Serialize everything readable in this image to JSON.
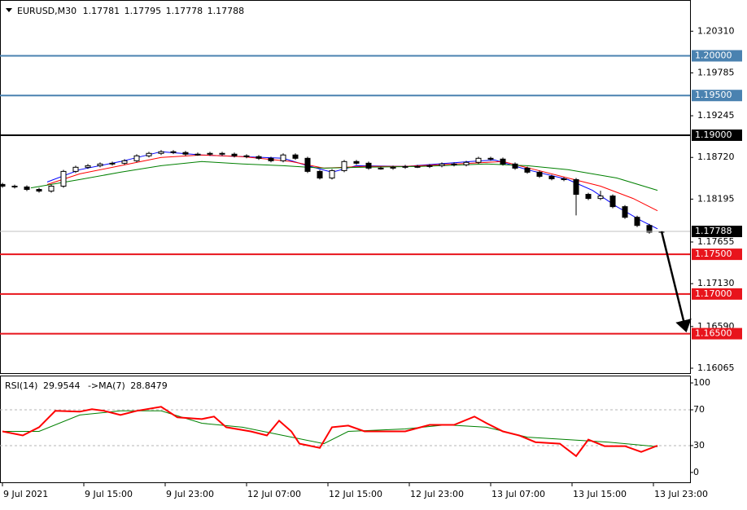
{
  "chart_data": [
    {
      "type": "candlestick",
      "symbol": "EURUSD,M30",
      "quote": [
        1.17781,
        1.17795,
        1.17778,
        1.17788
      ],
      "x": [
        0,
        3,
        6,
        9,
        12,
        15,
        18,
        21,
        24,
        27,
        30,
        33,
        36,
        39,
        42,
        45,
        48,
        51,
        54,
        57,
        60,
        63,
        66,
        69,
        72,
        75,
        78,
        81,
        84,
        87,
        90,
        93,
        96,
        99,
        102,
        105,
        108,
        111,
        114,
        117,
        120,
        123,
        126,
        129,
        132,
        135,
        138,
        141,
        144,
        147,
        150,
        153,
        156,
        159,
        162
      ],
      "open": [
        1.1838,
        1.18358,
        1.18348,
        1.18317,
        1.18296,
        1.18358,
        1.18544,
        1.18596,
        1.18616,
        1.18637,
        1.18647,
        1.18678,
        1.1874,
        1.18771,
        1.18792,
        1.18782,
        1.18761,
        1.18761,
        1.18771,
        1.18761,
        1.1874,
        1.1873,
        1.18709,
        1.18678,
        1.18751,
        1.18709,
        1.18544,
        1.18461,
        1.18554,
        1.18668,
        1.18647,
        1.18585,
        1.18585,
        1.18596,
        1.18606,
        1.18606,
        1.18616,
        1.18637,
        1.18627,
        1.18658,
        1.18709,
        1.18699,
        1.18637,
        1.18585,
        1.18534,
        1.18482,
        1.18451,
        1.18441,
        1.18255,
        1.18203,
        1.18234,
        1.181,
        1.17966,
        1.17863,
        1.17779
      ],
      "high": [
        1.184,
        1.18378,
        1.18368,
        1.18337,
        1.18378,
        1.18564,
        1.18616,
        1.18636,
        1.18657,
        1.18667,
        1.18698,
        1.1876,
        1.18791,
        1.18812,
        1.18812,
        1.18802,
        1.18781,
        1.18791,
        1.18791,
        1.18781,
        1.1876,
        1.1875,
        1.18729,
        1.18771,
        1.18771,
        1.18729,
        1.18564,
        1.18574,
        1.18688,
        1.18688,
        1.18667,
        1.18605,
        1.18616,
        1.18626,
        1.18626,
        1.18636,
        1.18657,
        1.18657,
        1.18678,
        1.18729,
        1.18729,
        1.18719,
        1.18657,
        1.18605,
        1.18554,
        1.18502,
        1.18471,
        1.18461,
        1.18275,
        1.183,
        1.18254,
        1.1812,
        1.17986,
        1.17883,
        1.17795
      ],
      "low": [
        1.18338,
        1.18328,
        1.18297,
        1.18276,
        1.18276,
        1.18338,
        1.18524,
        1.18576,
        1.18596,
        1.18617,
        1.18627,
        1.18658,
        1.1872,
        1.18751,
        1.18762,
        1.18741,
        1.18741,
        1.18741,
        1.18741,
        1.1872,
        1.1871,
        1.18689,
        1.18658,
        1.18658,
        1.18689,
        1.18524,
        1.18441,
        1.18441,
        1.18534,
        1.18627,
        1.18565,
        1.18565,
        1.18565,
        1.18576,
        1.18586,
        1.18586,
        1.18596,
        1.18607,
        1.18607,
        1.18638,
        1.18679,
        1.18617,
        1.18565,
        1.18514,
        1.18462,
        1.18431,
        1.18421,
        1.1799,
        1.18183,
        1.18183,
        1.1808,
        1.17946,
        1.17843,
        1.17759,
        1.17759
      ],
      "close": [
        1.18358,
        1.18348,
        1.18317,
        1.18296,
        1.18358,
        1.18544,
        1.18596,
        1.18616,
        1.18637,
        1.18647,
        1.18678,
        1.1874,
        1.18771,
        1.18792,
        1.18782,
        1.18761,
        1.18761,
        1.18771,
        1.18761,
        1.1874,
        1.1873,
        1.18709,
        1.18678,
        1.18751,
        1.18709,
        1.18544,
        1.18461,
        1.18554,
        1.18668,
        1.18647,
        1.18585,
        1.18585,
        1.18596,
        1.18606,
        1.18606,
        1.18616,
        1.18637,
        1.18627,
        1.18658,
        1.18709,
        1.18699,
        1.18637,
        1.18585,
        1.18534,
        1.18482,
        1.18451,
        1.18441,
        1.18255,
        1.18203,
        1.18234,
        1.181,
        1.17966,
        1.17863,
        1.17779,
        1.17788
      ],
      "lines": [
        {
          "color": "#0000ff",
          "x": [
            11,
            19,
            29,
            39,
            49,
            59,
            69,
            75,
            81,
            87,
            99,
            115,
            121,
            129,
            139,
            145,
            151,
            157,
            161
          ],
          "values": [
            1.1841,
            1.18565,
            1.18668,
            1.18792,
            1.18751,
            1.1873,
            1.18709,
            1.18616,
            1.18534,
            1.18616,
            1.18606,
            1.18668,
            1.18688,
            1.18565,
            1.18441,
            1.18306,
            1.181,
            1.17924,
            1.17821
          ]
        },
        {
          "color": "#ff0000",
          "x": [
            11,
            19,
            29,
            39,
            49,
            59,
            71,
            79,
            89,
            99,
            115,
            123,
            131,
            139,
            147,
            155,
            161
          ],
          "values": [
            1.18379,
            1.18513,
            1.18616,
            1.1872,
            1.18751,
            1.1873,
            1.18668,
            1.18585,
            1.18606,
            1.18606,
            1.18647,
            1.18668,
            1.18565,
            1.18461,
            1.18358,
            1.18203,
            1.18048
          ]
        },
        {
          "color": "#008000",
          "x": [
            7,
            19,
            29,
            39,
            49,
            59,
            69,
            79,
            89,
            103,
            119,
            129,
            139,
            151,
            161
          ],
          "values": [
            1.18337,
            1.18441,
            1.18534,
            1.18616,
            1.18668,
            1.18637,
            1.18616,
            1.18585,
            1.18596,
            1.18606,
            1.18637,
            1.18616,
            1.18565,
            1.18461,
            1.18306
          ]
        }
      ],
      "levels": [
        {
          "value": 1.2,
          "label": "1.20000",
          "color": "#4a82b0"
        },
        {
          "value": 1.195,
          "label": "1.19500",
          "color": "#4a82b0"
        },
        {
          "value": 1.19,
          "label": "1.19000",
          "color": "#000000"
        },
        {
          "value": 1.175,
          "label": "1.17500",
          "color": "#e8141c"
        },
        {
          "value": 1.17,
          "label": "1.17000",
          "color": "#e8141c"
        },
        {
          "value": 1.165,
          "label": "1.16500",
          "color": "#e8141c"
        }
      ],
      "current_price": 1.17788,
      "arrow": {
        "x": [
          162,
          168
        ],
        "y": [
          1.17788,
          1.165
        ]
      },
      "xlim": [
        -0.6,
        169
      ],
      "ylim": [
        1.16003,
        1.20703
      ],
      "yticks": [
        {
          "value": 1.2031,
          "label": "1.20310"
        },
        {
          "value": 1.19785,
          "label": "1.19785"
        },
        {
          "value": 1.19245,
          "label": "1.19245"
        },
        {
          "value": 1.1872,
          "label": "1.18720"
        },
        {
          "value": 1.18195,
          "label": "1.18195"
        },
        {
          "value": 1.17655,
          "label": "1.17655"
        },
        {
          "value": 1.1713,
          "label": "1.17130"
        },
        {
          "value": 1.1659,
          "label": "1.16590"
        },
        {
          "value": 1.16065,
          "label": "1.16065"
        }
      ]
    },
    {
      "type": "line",
      "title": "RSI(14)",
      "value": 29.9544,
      "ma_title": "->MA(7)",
      "ma_value": 28.8479,
      "series": [
        {
          "color": "#ff0000",
          "x": [
            0,
            5,
            9,
            13,
            19,
            22,
            25,
            29,
            33,
            39,
            43,
            49,
            52,
            55,
            61,
            65,
            68,
            71,
            73,
            78,
            81,
            85,
            89,
            99,
            105,
            111,
            116,
            119,
            123,
            127,
            131,
            137,
            141,
            144,
            148,
            153,
            157,
            161
          ],
          "values": [
            45.9,
            41.3,
            50.5,
            68.8,
            67.9,
            70.6,
            68.8,
            64.2,
            68.8,
            73.4,
            61.5,
            59.6,
            62.4,
            50.5,
            45.9,
            41.3,
            57.8,
            45.9,
            32.1,
            27.5,
            50.5,
            52.3,
            45.9,
            45.9,
            53.2,
            53.2,
            62.4,
            55.0,
            45.9,
            41.3,
            33.9,
            32.1,
            18.3,
            36.7,
            29.4,
            29.4,
            22.9,
            29.9544
          ]
        },
        {
          "color": "#008000",
          "x": [
            0,
            9,
            19,
            29,
            39,
            49,
            59,
            69,
            79,
            85,
            99,
            109,
            119,
            129,
            139,
            149,
            161
          ],
          "values": [
            45.9,
            45.9,
            64.2,
            68.8,
            68.8,
            55.0,
            50.5,
            41.3,
            32.1,
            45.9,
            48.6,
            53.2,
            50.5,
            39.4,
            36.7,
            33.9,
            28.8479
          ]
        }
      ],
      "levels": [
        70,
        30
      ],
      "xlim": [
        -0.6,
        169
      ],
      "ylim": [
        -11,
        107.3
      ],
      "yticks": [
        0,
        30,
        70,
        100
      ],
      "xticks": [
        {
          "value": 0,
          "label": "9 Jul 2021"
        },
        {
          "value": 20,
          "label": "9 Jul 15:00"
        },
        {
          "value": 40,
          "label": "9 Jul 23:00"
        },
        {
          "value": 60,
          "label": "12 Jul 07:00"
        },
        {
          "value": 80,
          "label": "12 Jul 15:00"
        },
        {
          "value": 100,
          "label": "12 Jul 23:00"
        },
        {
          "value": 120,
          "label": "13 Jul 07:00"
        },
        {
          "value": 140,
          "label": "13 Jul 15:00"
        },
        {
          "value": 160,
          "label": "13 Jul 23:00"
        }
      ]
    }
  ]
}
